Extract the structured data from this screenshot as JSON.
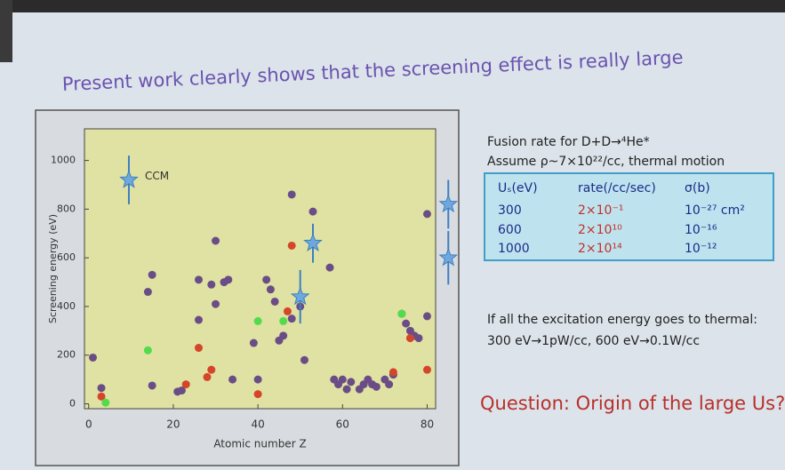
{
  "title": "Present work clearly shows that the screening effect is really large",
  "chart_data": {
    "type": "scatter",
    "y_label": "Screening energy (eV)",
    "x_label": "Atomic number Z",
    "xlim": [
      -1,
      82
    ],
    "ylim": [
      -20,
      1130
    ],
    "xticks": [
      0,
      20,
      40,
      60,
      80
    ],
    "yticks": [
      0,
      200,
      400,
      600,
      800,
      1000
    ],
    "annotation": "CCM",
    "series": [
      {
        "color": "#6a4d86",
        "x": [
          1,
          3,
          14,
          15,
          15,
          21,
          22,
          26,
          26,
          29,
          30,
          30,
          32,
          33,
          34,
          39,
          40,
          42,
          43,
          44,
          45,
          46,
          48,
          48,
          50,
          51,
          53,
          57,
          58,
          59,
          60,
          61,
          62,
          64,
          65,
          66,
          67,
          68,
          70,
          71,
          72,
          74,
          75,
          76,
          77,
          78,
          80,
          80
        ],
        "values": [
          190,
          65,
          460,
          530,
          75,
          50,
          55,
          510,
          345,
          490,
          670,
          410,
          500,
          510,
          100,
          250,
          100,
          510,
          470,
          420,
          260,
          280,
          350,
          860,
          400,
          180,
          790,
          560,
          100,
          80,
          100,
          60,
          90,
          60,
          80,
          100,
          80,
          70,
          100,
          80,
          120,
          370,
          330,
          300,
          280,
          270,
          780,
          360
        ]
      },
      {
        "color": "#d4452a",
        "x": [
          3,
          23,
          26,
          28,
          29,
          40,
          47,
          48,
          72,
          76,
          80
        ],
        "values": [
          30,
          80,
          230,
          110,
          140,
          40,
          380,
          650,
          130,
          270,
          140
        ]
      },
      {
        "color": "#52dc4c",
        "x": [
          4,
          14,
          40,
          46,
          74
        ],
        "values": [
          5,
          220,
          340,
          340,
          370
        ]
      },
      {
        "color": "#6fa8dc",
        "marker": "star",
        "x": [
          9.5,
          50,
          53,
          85,
          85
        ],
        "values": [
          920,
          440,
          660,
          820,
          600
        ],
        "errors": [
          100,
          110,
          80,
          100,
          110
        ]
      }
    ]
  },
  "notes": {
    "line1": "Fusion rate for D+D→⁴He*",
    "line2": "Assume ρ~7×10²²/cc, thermal motion",
    "line3": "If all the excitation energy goes to thermal:",
    "line4": "300 eV→1pW/cc, 600 eV→0.1W/cc"
  },
  "table": {
    "header": [
      "Uₛ(eV)",
      "rate(/cc/sec)",
      "σ(b)"
    ],
    "rows": [
      [
        "300",
        "2×10⁻¹",
        "10⁻²⁷ cm²"
      ],
      [
        "600",
        "2×10¹⁰",
        "10⁻¹⁶"
      ],
      [
        "1000",
        "2×10¹⁴",
        "10⁻¹²"
      ]
    ]
  },
  "question": "Question: Origin of the large Us?"
}
